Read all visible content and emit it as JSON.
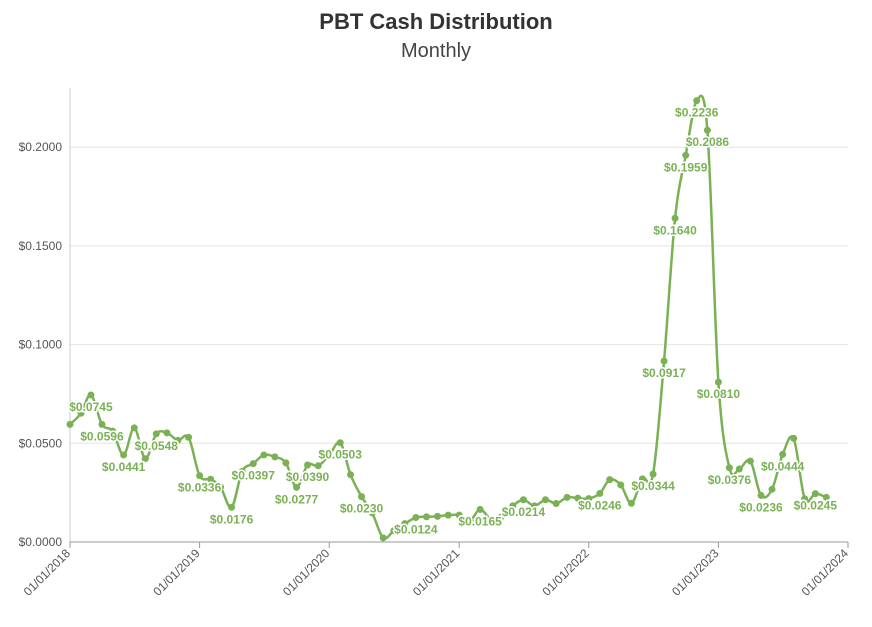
{
  "chart_data": {
    "type": "line",
    "title": "PBT Cash Distribution",
    "subtitle": "Monthly",
    "xlabel": "",
    "ylabel": "",
    "color": "#7ab155",
    "grid": "horizontal",
    "legend": "none",
    "ylim": [
      0,
      0.23
    ],
    "xlim": [
      "2018-01-01",
      "2024-01-01"
    ],
    "y_ticks": [
      {
        "value": 0,
        "label": "$0.0000"
      },
      {
        "value": 0.05,
        "label": "$0.0500"
      },
      {
        "value": 0.1,
        "label": "$0.1000"
      },
      {
        "value": 0.15,
        "label": "$0.1500"
      },
      {
        "value": 0.2,
        "label": "$0.2000"
      }
    ],
    "x_ticks": [
      {
        "date": "2018-01-01",
        "label": "01/01/2018"
      },
      {
        "date": "2019-01-01",
        "label": "01/01/2019"
      },
      {
        "date": "2020-01-01",
        "label": "01/01/2020"
      },
      {
        "date": "2021-01-01",
        "label": "01/01/2021"
      },
      {
        "date": "2022-01-01",
        "label": "01/01/2022"
      },
      {
        "date": "2023-01-01",
        "label": "01/01/2023"
      },
      {
        "date": "2024-01-01",
        "label": "01/01/2024"
      }
    ],
    "points": [
      {
        "date": "2018-01-01",
        "value": 0.0596
      },
      {
        "date": "2018-02-01",
        "value": 0.0652
      },
      {
        "date": "2018-03-01",
        "value": 0.0745,
        "label": "$0.0745"
      },
      {
        "date": "2018-04-01",
        "value": 0.0596,
        "label": "$0.0596"
      },
      {
        "date": "2018-05-01",
        "value": 0.0562
      },
      {
        "date": "2018-06-01",
        "value": 0.0441,
        "label": "$0.0441"
      },
      {
        "date": "2018-07-01",
        "value": 0.0578
      },
      {
        "date": "2018-08-01",
        "value": 0.0422
      },
      {
        "date": "2018-09-01",
        "value": 0.0548,
        "label": "$0.0548"
      },
      {
        "date": "2018-10-01",
        "value": 0.0553
      },
      {
        "date": "2018-11-01",
        "value": 0.0515
      },
      {
        "date": "2018-12-01",
        "value": 0.053
      },
      {
        "date": "2019-01-01",
        "value": 0.0336,
        "label": "$0.0336"
      },
      {
        "date": "2019-02-01",
        "value": 0.0318
      },
      {
        "date": "2019-03-01",
        "value": 0.0278
      },
      {
        "date": "2019-04-01",
        "value": 0.0176,
        "label": "$0.0176"
      },
      {
        "date": "2019-05-01",
        "value": 0.0358
      },
      {
        "date": "2019-06-01",
        "value": 0.0397,
        "label": "$0.0397"
      },
      {
        "date": "2019-07-01",
        "value": 0.0441
      },
      {
        "date": "2019-08-01",
        "value": 0.0431
      },
      {
        "date": "2019-09-01",
        "value": 0.0401
      },
      {
        "date": "2019-10-01",
        "value": 0.0277,
        "label": "$0.0277"
      },
      {
        "date": "2019-11-01",
        "value": 0.039,
        "label": "$0.0390"
      },
      {
        "date": "2019-12-01",
        "value": 0.0386
      },
      {
        "date": "2020-01-01",
        "value": 0.044
      },
      {
        "date": "2020-02-01",
        "value": 0.0503,
        "label": "$0.0503"
      },
      {
        "date": "2020-03-01",
        "value": 0.0341
      },
      {
        "date": "2020-04-01",
        "value": 0.023,
        "label": "$0.0230"
      },
      {
        "date": "2020-05-01",
        "value": 0.0148
      },
      {
        "date": "2020-06-01",
        "value": 0.0021
      },
      {
        "date": "2020-07-01",
        "value": 0.0057
      },
      {
        "date": "2020-08-01",
        "value": 0.0093
      },
      {
        "date": "2020-09-01",
        "value": 0.0124,
        "label": "$0.0124"
      },
      {
        "date": "2020-10-01",
        "value": 0.0128
      },
      {
        "date": "2020-11-01",
        "value": 0.013
      },
      {
        "date": "2020-12-01",
        "value": 0.0136
      },
      {
        "date": "2021-01-01",
        "value": 0.0136
      },
      {
        "date": "2021-02-01",
        "value": 0.0111
      },
      {
        "date": "2021-03-01",
        "value": 0.0165,
        "label": "$0.0165"
      },
      {
        "date": "2021-04-01",
        "value": 0.0115
      },
      {
        "date": "2021-05-01",
        "value": 0.013
      },
      {
        "date": "2021-06-01",
        "value": 0.0183
      },
      {
        "date": "2021-07-01",
        "value": 0.0214,
        "label": "$0.0214"
      },
      {
        "date": "2021-08-01",
        "value": 0.0183
      },
      {
        "date": "2021-09-01",
        "value": 0.0214
      },
      {
        "date": "2021-10-01",
        "value": 0.0195
      },
      {
        "date": "2021-11-01",
        "value": 0.0226
      },
      {
        "date": "2021-12-01",
        "value": 0.0222
      },
      {
        "date": "2022-01-01",
        "value": 0.022
      },
      {
        "date": "2022-02-01",
        "value": 0.0246,
        "label": "$0.0246"
      },
      {
        "date": "2022-03-01",
        "value": 0.0316
      },
      {
        "date": "2022-04-01",
        "value": 0.0289
      },
      {
        "date": "2022-05-01",
        "value": 0.0196
      },
      {
        "date": "2022-06-01",
        "value": 0.032
      },
      {
        "date": "2022-07-01",
        "value": 0.0344,
        "label": "$0.0344"
      },
      {
        "date": "2022-08-01",
        "value": 0.0917,
        "label": "$0.0917"
      },
      {
        "date": "2022-09-01",
        "value": 0.164,
        "label": "$0.1640"
      },
      {
        "date": "2022-10-01",
        "value": 0.1959,
        "label": "$0.1959"
      },
      {
        "date": "2022-11-01",
        "value": 0.2236,
        "label": "$0.2236"
      },
      {
        "date": "2022-12-01",
        "value": 0.2086,
        "label": "$0.2086"
      },
      {
        "date": "2023-01-01",
        "value": 0.081,
        "label": "$0.0810"
      },
      {
        "date": "2023-02-01",
        "value": 0.0376,
        "label": "$0.0376"
      },
      {
        "date": "2023-03-01",
        "value": 0.037
      },
      {
        "date": "2023-04-01",
        "value": 0.041
      },
      {
        "date": "2023-05-01",
        "value": 0.0236,
        "label": "$0.0236"
      },
      {
        "date": "2023-06-01",
        "value": 0.0267
      },
      {
        "date": "2023-07-01",
        "value": 0.0444,
        "label": "$0.0444"
      },
      {
        "date": "2023-08-01",
        "value": 0.0525
      },
      {
        "date": "2023-09-01",
        "value": 0.0219
      },
      {
        "date": "2023-10-01",
        "value": 0.0245,
        "label": "$0.0245"
      },
      {
        "date": "2023-11-01",
        "value": 0.0226
      }
    ]
  }
}
